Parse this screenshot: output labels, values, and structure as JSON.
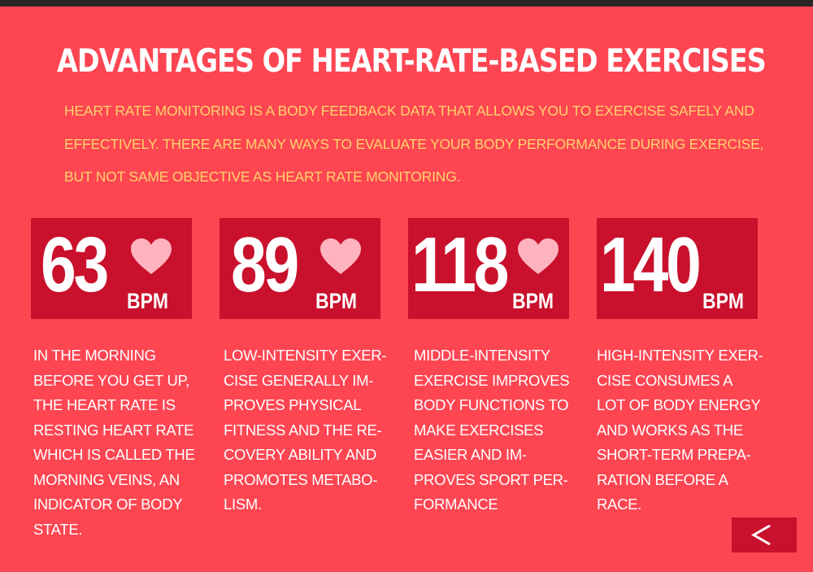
{
  "page": {
    "title": "ADVANTAGES OF HEART-RATE-BASED EXERCISES",
    "intro": "HEART RATE MONITORING IS A BODY FEEDBACK DATA THAT ALLOWS YOU TO EXERCISE SAFELY AND EFFECTIVELY. THERE ARE MANY WAYS TO EVALUATE YOUR BODY PERFORMANCE DURING EXERCISE, BUT NOT SAME OBJECTIVE AS HEART RATE MONITORING."
  },
  "colors": {
    "background": "#fe4552",
    "card": "#c9102c",
    "intro_text": "#ffd46b",
    "heart": "#ffb3bf",
    "top_bar": "#262626"
  },
  "cards": [
    {
      "value": "63",
      "unit": "BPM",
      "icon": "heart-icon",
      "description": "IN THE MORNING\nBEFORE YOU GET UP,\nTHE HEART RATE IS\nRESTING HEART RATE\nWHICH IS CALLED THE\nMORNING VEINS, AN\nINDICATOR OF BODY\nSTATE."
    },
    {
      "value": "89",
      "unit": "BPM",
      "icon": "heart-icon",
      "description": "LOW-INTENSITY EXER-\nCISE GENERALLY IM-\nPROVES PHYSICAL\nFITNESS AND THE RE-\nCOVERY ABILITY AND\nPROMOTES METABO-\nLISM."
    },
    {
      "value": "118",
      "unit": "BPM",
      "icon": "heart-icon",
      "description": "MIDDLE-INTENSITY\nEXERCISE IMPROVES\nBODY FUNCTIONS TO\nMAKE EXERCISES\nEASIER AND IM-\nPROVES SPORT PER-\nFORMANCE"
    },
    {
      "value": "140",
      "unit": "BPM",
      "icon": "",
      "description": "HIGH-INTENSITY EXER-\nCISE CONSUMES A\nLOT OF BODY ENERGY\nAND WORKS AS THE\nSHORT-TERM PREPA-\nRATION BEFORE A\nRACE."
    }
  ],
  "navigation": {
    "back_icon": "chevron-left-icon"
  }
}
